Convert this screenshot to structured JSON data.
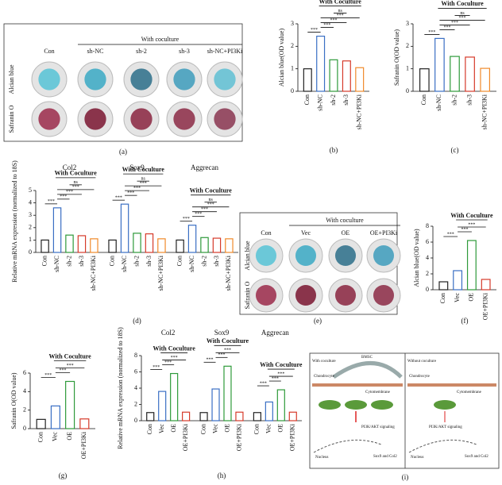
{
  "chart_data": [
    {
      "type": "bar",
      "panel": "(b)",
      "ylabel": "Alcian blue(OD value)",
      "categories": [
        "Con",
        "sh-NC",
        "sh-2",
        "sh-3",
        "sh-NC+PI3Ki"
      ],
      "values": [
        1.0,
        2.45,
        1.4,
        1.35,
        1.05
      ],
      "colors": [
        "#222222",
        "#3a6fc4",
        "#2e9a3a",
        "#d63a2a",
        "#f08a2a"
      ],
      "ylim": [
        0,
        3
      ],
      "yticks": [
        0,
        1,
        2,
        3
      ],
      "bracket": "With Coculture",
      "significance": [
        "***",
        "***",
        "***",
        "***",
        "ns"
      ]
    },
    {
      "type": "bar",
      "panel": "(c)",
      "ylabel": "Safranin O(OD value)",
      "categories": [
        "Con",
        "sh-NC",
        "sh-2",
        "sh-3",
        "sh-NC+PI3Ki"
      ],
      "values": [
        1.0,
        2.35,
        1.55,
        1.52,
        1.02
      ],
      "colors": [
        "#222222",
        "#3a6fc4",
        "#2e9a3a",
        "#d63a2a",
        "#f08a2a"
      ],
      "ylim": [
        0,
        3
      ],
      "yticks": [
        0,
        1,
        2,
        3
      ],
      "bracket": "With Coculture",
      "significance": [
        "***",
        "***",
        "***",
        "***",
        "ns"
      ]
    },
    {
      "type": "grouped_bar",
      "panel": "(d)",
      "ylabel": "Relative mRNA expression (normalized to 18S)",
      "categories": [
        "Con",
        "sh-NC",
        "sh-2",
        "sh-3",
        "sh-NC+PI3Ki"
      ],
      "colors": [
        "#222222",
        "#3a6fc4",
        "#2e9a3a",
        "#d63a2a",
        "#f08a2a"
      ],
      "groups": [
        {
          "title": "Col2",
          "values": [
            1.0,
            3.6,
            1.4,
            1.35,
            1.1
          ]
        },
        {
          "title": "Sox9",
          "values": [
            1.0,
            3.9,
            1.55,
            1.5,
            1.1
          ]
        },
        {
          "title": "Aggrecan",
          "values": [
            1.0,
            2.2,
            1.2,
            1.15,
            1.1
          ]
        }
      ],
      "ylim": [
        0,
        5
      ],
      "yticks": [
        0,
        1,
        2,
        3,
        4,
        5
      ],
      "bracket": "With Coculture",
      "significance": [
        "***",
        "***",
        "***",
        "***",
        "ns"
      ]
    },
    {
      "type": "bar",
      "panel": "(f)",
      "ylabel": "Alcian blue(OD value)",
      "categories": [
        "Con",
        "Vec",
        "OE",
        "OE+PI3Ki"
      ],
      "values": [
        1.0,
        2.4,
        6.2,
        1.3
      ],
      "colors": [
        "#222222",
        "#3a6fc4",
        "#2e9a3a",
        "#d63a2a"
      ],
      "ylim": [
        0,
        8
      ],
      "yticks": [
        0,
        2,
        4,
        6,
        8
      ],
      "bracket": "With Coculture",
      "significance": [
        "***",
        "***",
        "***"
      ]
    },
    {
      "type": "bar",
      "panel": "(g)",
      "ylabel": "Safranin O(OD value)",
      "categories": [
        "Con",
        "Vec",
        "OE",
        "OE+PI3Ki"
      ],
      "values": [
        1.0,
        2.45,
        5.1,
        1.05
      ],
      "colors": [
        "#222222",
        "#3a6fc4",
        "#2e9a3a",
        "#d63a2a"
      ],
      "ylim": [
        0,
        6
      ],
      "yticks": [
        0,
        2,
        4,
        6
      ],
      "bracket": "With Coculture",
      "significance": [
        "***",
        "***",
        "***"
      ]
    },
    {
      "type": "grouped_bar",
      "panel": "(h)",
      "ylabel": "Relative mRNA expression (normalized to 18S)",
      "categories": [
        "Con",
        "Vec",
        "OE",
        "OE+PI3Ki"
      ],
      "colors": [
        "#222222",
        "#3a6fc4",
        "#2e9a3a",
        "#d63a2a"
      ],
      "groups": [
        {
          "title": "Col2",
          "values": [
            1.0,
            3.6,
            5.8,
            1.05
          ]
        },
        {
          "title": "Sox9",
          "values": [
            1.0,
            3.9,
            6.7,
            1.05
          ]
        },
        {
          "title": "Aggrecan",
          "values": [
            1.0,
            2.3,
            3.8,
            1.05
          ]
        }
      ],
      "ylim": [
        0,
        8
      ],
      "yticks": [
        0,
        2,
        4,
        6,
        8
      ],
      "bracket": "With Coculture",
      "significance": [
        "***",
        "***",
        "***"
      ]
    }
  ],
  "images": {
    "a": {
      "panel": "(a)",
      "control": "Con",
      "group": "With coculture",
      "columns": [
        "sh-NC",
        "sh-2",
        "sh-3",
        "sh-NC+PI3Ki"
      ],
      "rows": [
        "Alcian blue",
        "Safranin O"
      ]
    },
    "e": {
      "panel": "(e)",
      "control": "Con",
      "group": "With coculture",
      "columns": [
        "Vec",
        "OE",
        "OE+PI3Ki"
      ],
      "rows": [
        "Alcian blue",
        "Safranin O"
      ]
    },
    "i": {
      "panel": "(i)",
      "left_title": "With coculture",
      "right_title": "Without coculture",
      "cell": "BMSC",
      "chondrocyte": "Chondrocyte",
      "membrane": "Cytomembrane",
      "signaling": "PI3K/AKT signaling",
      "nucleus": "Nucleus",
      "genes": "Sox9 and Col2"
    }
  }
}
